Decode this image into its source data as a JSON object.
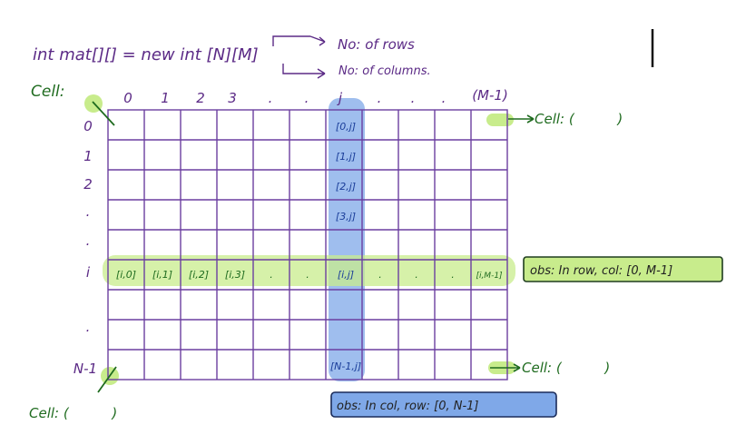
{
  "declaration": {
    "code": "int mat[][] = new int [N][M]",
    "rows_note": "No: of rows",
    "cols_note": "No: of columns."
  },
  "cell_label": "Cell:",
  "col_headers": [
    "0",
    "1",
    "2",
    "3",
    ".",
    ".",
    "j",
    ".",
    ".",
    ".",
    "(M-1)"
  ],
  "row_headers": [
    "0",
    "1",
    "2",
    ".",
    ".",
    "i",
    "",
    ".",
    "N-1"
  ],
  "cells": {
    "col_j": [
      "[0,j]",
      "[1,j]",
      "[2,j]",
      "[3,j]",
      "[N-1,j]"
    ],
    "row_i": [
      "[i,0]",
      "[i,1]",
      "[i,2]",
      "[i,3]",
      ".",
      ".",
      "[i,j]",
      ".",
      ".",
      ".",
      "[i,M-1]"
    ]
  },
  "corner_labels": {
    "top_right": "Cell: (          )",
    "bottom_right": "Cell: (          )",
    "bottom_left": "Cell: (          )"
  },
  "observations": {
    "row": "obs: In row, col: [0, M-1]",
    "col": "obs: In col, row: [0, N-1]"
  },
  "colors": {
    "grid": "#6b3fa0",
    "ink_purple": "#5b2a86",
    "ink_green": "#1f6b1f",
    "ink_blue": "#1a3d99",
    "highlight_green": "#c8ec8c",
    "highlight_blue": "#7fa8e8"
  }
}
